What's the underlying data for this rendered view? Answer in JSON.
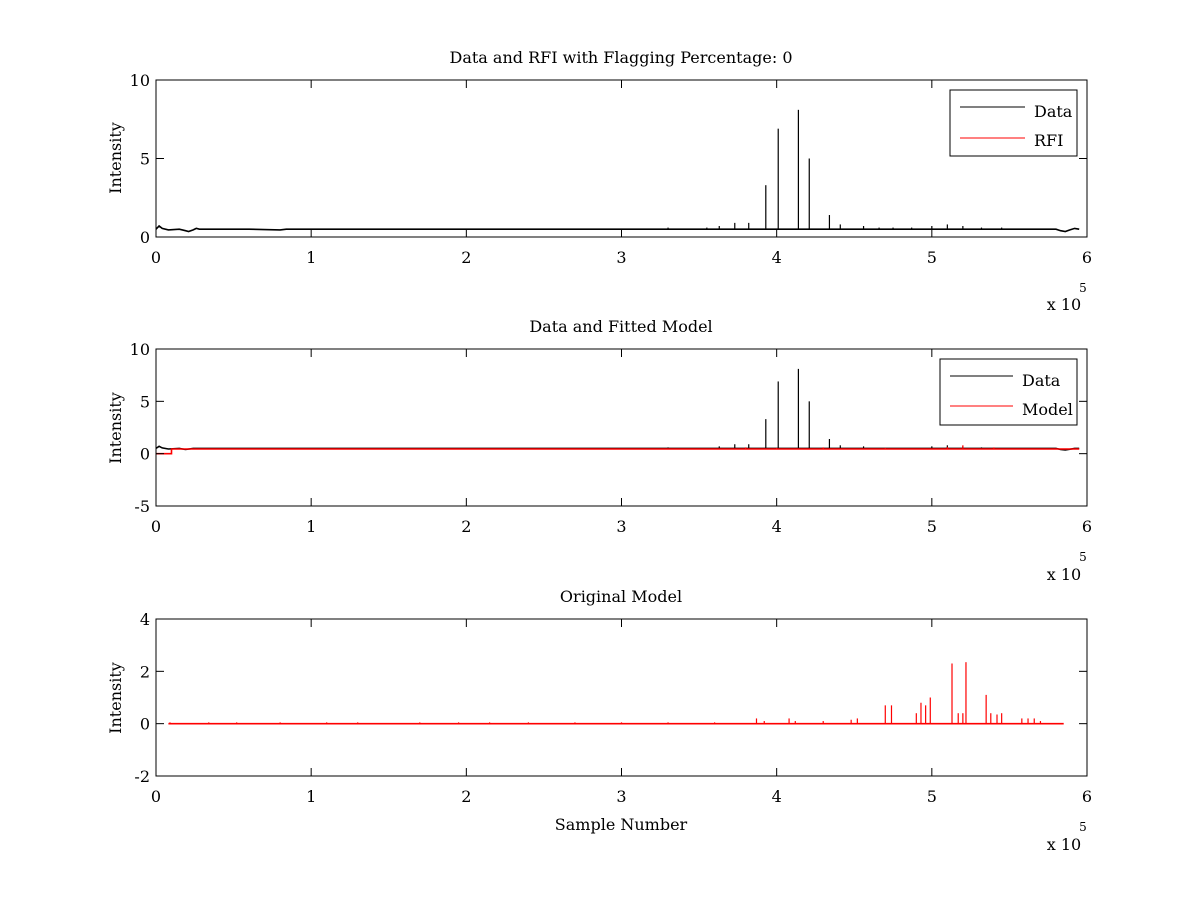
{
  "chart_data": [
    {
      "type": "line",
      "title": "Data and RFI with Flagging Percentage: 0",
      "xlabel": "",
      "ylabel": "Intensity",
      "xlim": [
        0,
        600000
      ],
      "ylim": [
        0,
        10
      ],
      "xticks": [
        0,
        1,
        2,
        3,
        4,
        5,
        6
      ],
      "yticks": [
        0,
        5,
        10
      ],
      "x_multiplier": "x 10",
      "x_multiplier_exp": "5",
      "grid": false,
      "legend_position": "top-right",
      "series": [
        {
          "name": "Data",
          "color": "#000000",
          "baseline": 0.5,
          "baseline_points": [
            [
              0,
              0.5
            ],
            [
              2000,
              0.7
            ],
            [
              4000,
              0.55
            ],
            [
              8000,
              0.45
            ],
            [
              15000,
              0.5
            ],
            [
              19000,
              0.4
            ],
            [
              21000,
              0.35
            ],
            [
              24000,
              0.45
            ],
            [
              26000,
              0.55
            ],
            [
              28000,
              0.5
            ],
            [
              60000,
              0.5
            ],
            [
              80000,
              0.45
            ],
            [
              84000,
              0.5
            ],
            [
              580000,
              0.5
            ],
            [
              583000,
              0.4
            ],
            [
              586000,
              0.35
            ],
            [
              589000,
              0.45
            ],
            [
              592000,
              0.55
            ],
            [
              595000,
              0.5
            ]
          ],
          "spikes": [
            [
              330000,
              0.6
            ],
            [
              355000,
              0.6
            ],
            [
              363000,
              0.7
            ],
            [
              373000,
              0.9
            ],
            [
              382000,
              0.9
            ],
            [
              393000,
              3.3
            ],
            [
              401000,
              6.9
            ],
            [
              414000,
              8.1
            ],
            [
              421000,
              5.0
            ],
            [
              434000,
              1.4
            ],
            [
              441000,
              0.8
            ],
            [
              456000,
              0.7
            ],
            [
              466000,
              0.6
            ],
            [
              475000,
              0.6
            ],
            [
              487000,
              0.6
            ],
            [
              500000,
              0.7
            ],
            [
              510000,
              0.8
            ],
            [
              520000,
              0.7
            ],
            [
              532000,
              0.6
            ],
            [
              545000,
              0.6
            ]
          ]
        },
        {
          "name": "RFI",
          "color": "#ff0000",
          "baseline": null,
          "baseline_points": [],
          "spikes": []
        }
      ]
    },
    {
      "type": "line",
      "title": "Data and Fitted Model",
      "xlabel": "",
      "ylabel": "Intensity",
      "xlim": [
        0,
        600000
      ],
      "ylim": [
        -5,
        10
      ],
      "xticks": [
        0,
        1,
        2,
        3,
        4,
        5,
        6
      ],
      "yticks": [
        -5,
        0,
        5,
        10
      ],
      "x_multiplier": "x 10",
      "x_multiplier_exp": "5",
      "grid": false,
      "legend_position": "top-right",
      "series": [
        {
          "name": "Data",
          "color": "#000000",
          "baseline": 0.5,
          "baseline_points": [
            [
              0,
              0.5
            ],
            [
              2000,
              0.7
            ],
            [
              4000,
              0.55
            ],
            [
              8000,
              0.45
            ],
            [
              15000,
              0.5
            ],
            [
              19000,
              0.4
            ],
            [
              24000,
              0.5
            ],
            [
              580000,
              0.5
            ],
            [
              583000,
              0.4
            ],
            [
              586000,
              0.35
            ],
            [
              592000,
              0.5
            ],
            [
              595000,
              0.5
            ]
          ],
          "spikes": [
            [
              330000,
              0.6
            ],
            [
              363000,
              0.7
            ],
            [
              373000,
              0.9
            ],
            [
              382000,
              0.9
            ],
            [
              393000,
              3.3
            ],
            [
              401000,
              6.9
            ],
            [
              414000,
              8.1
            ],
            [
              421000,
              5.0
            ],
            [
              434000,
              1.4
            ],
            [
              441000,
              0.8
            ],
            [
              456000,
              0.7
            ],
            [
              500000,
              0.7
            ],
            [
              510000,
              0.8
            ],
            [
              520000,
              0.7
            ],
            [
              532000,
              0.6
            ]
          ]
        },
        {
          "name": "Model",
          "color": "#ff0000",
          "baseline": 0.45,
          "baseline_points": [
            [
              0,
              0.0
            ],
            [
              10000,
              0.0
            ],
            [
              10000,
              0.45
            ],
            [
              595000,
              0.45
            ]
          ],
          "spikes": [
            [
              380000,
              0.6
            ],
            [
              400000,
              0.55
            ],
            [
              430000,
              0.6
            ],
            [
              470000,
              0.55
            ],
            [
              510000,
              0.65
            ],
            [
              520000,
              0.8
            ],
            [
              540000,
              0.6
            ]
          ]
        }
      ]
    },
    {
      "type": "line",
      "title": "Original Model",
      "xlabel": "Sample Number",
      "ylabel": "Intensity",
      "xlim": [
        0,
        600000
      ],
      "ylim": [
        -2,
        4
      ],
      "xticks": [
        0,
        1,
        2,
        3,
        4,
        5,
        6
      ],
      "yticks": [
        -2,
        0,
        2,
        4
      ],
      "x_multiplier": "x 10",
      "x_multiplier_exp": "5",
      "grid": false,
      "legend_position": "none",
      "series": [
        {
          "name": "",
          "color": "#ff0000",
          "baseline": 0,
          "baseline_points": [
            [
              8000,
              0
            ],
            [
              585000,
              0
            ]
          ],
          "spikes": [
            [
              9000,
              0.05
            ],
            [
              34000,
              0.05
            ],
            [
              52000,
              0.05
            ],
            [
              80000,
              0.05
            ],
            [
              110000,
              0.05
            ],
            [
              130000,
              0.05
            ],
            [
              170000,
              0.05
            ],
            [
              195000,
              0.05
            ],
            [
              215000,
              0.05
            ],
            [
              240000,
              0.05
            ],
            [
              270000,
              0.05
            ],
            [
              300000,
              0.05
            ],
            [
              330000,
              0.05
            ],
            [
              360000,
              0.05
            ],
            [
              387000,
              0.2
            ],
            [
              392000,
              0.1
            ],
            [
              408000,
              0.2
            ],
            [
              412000,
              0.1
            ],
            [
              430000,
              0.1
            ],
            [
              448000,
              0.15
            ],
            [
              452000,
              0.2
            ],
            [
              470000,
              0.7
            ],
            [
              474000,
              0.7
            ],
            [
              490000,
              0.4
            ],
            [
              493000,
              0.8
            ],
            [
              496000,
              0.7
            ],
            [
              499000,
              1.0
            ],
            [
              513000,
              2.3
            ],
            [
              517000,
              0.4
            ],
            [
              520000,
              0.4
            ],
            [
              522000,
              2.35
            ],
            [
              535000,
              1.1
            ],
            [
              538000,
              0.4
            ],
            [
              542000,
              0.35
            ],
            [
              545000,
              0.4
            ],
            [
              558000,
              0.2
            ],
            [
              562000,
              0.2
            ],
            [
              566000,
              0.2
            ],
            [
              570000,
              0.1
            ]
          ]
        }
      ]
    }
  ]
}
